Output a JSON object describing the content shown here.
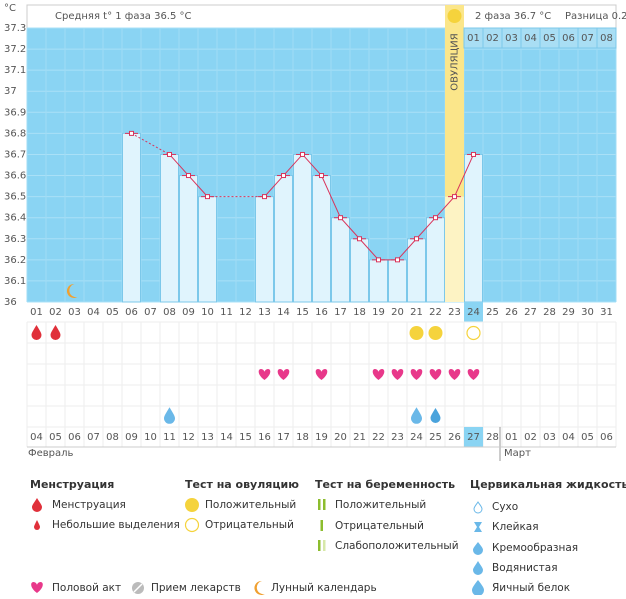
{
  "chart_data": {
    "type": "bar",
    "unit_label": "°C",
    "header": {
      "phase1": "Средняя t° 1 фаза 36.5 °C",
      "phase2": "2 фаза 36.7 °C",
      "difference": "Разница 0.2"
    },
    "ovulation_label": "ОВУЛЯЦИЯ",
    "ovulation_day": "23",
    "phase2_days": [
      "01",
      "02",
      "03",
      "04",
      "05",
      "06",
      "07",
      "08"
    ],
    "categories": [
      "01",
      "02",
      "03",
      "04",
      "05",
      "06",
      "07",
      "08",
      "09",
      "10",
      "11",
      "12",
      "13",
      "14",
      "15",
      "16",
      "17",
      "18",
      "19",
      "20",
      "21",
      "22",
      "23",
      "24",
      "25",
      "26",
      "27",
      "28",
      "29",
      "30",
      "31"
    ],
    "values": [
      null,
      null,
      null,
      null,
      null,
      36.8,
      null,
      36.7,
      36.6,
      36.5,
      null,
      null,
      36.5,
      36.6,
      36.7,
      36.6,
      36.4,
      36.3,
      36.2,
      36.2,
      36.3,
      36.4,
      36.5,
      36.7,
      null,
      null,
      null,
      null,
      null,
      null,
      null
    ],
    "color": "#d9345b",
    "ylim": [
      36,
      37.3
    ],
    "yticks": [
      36,
      36.1,
      36.2,
      36.3,
      36.4,
      36.5,
      36.6,
      36.7,
      36.8,
      36.9,
      37,
      37.1,
      37.2,
      37.3
    ],
    "today": "24",
    "dates": [
      "04",
      "05",
      "06",
      "07",
      "08",
      "09",
      "10",
      "11",
      "12",
      "13",
      "14",
      "15",
      "16",
      "17",
      "18",
      "19",
      "20",
      "21",
      "22",
      "23",
      "24",
      "25",
      "26",
      "27",
      "28",
      "01",
      "02",
      "03",
      "04",
      "05",
      "06"
    ],
    "weekends": [
      1,
      2,
      8,
      9,
      15,
      16,
      22,
      29,
      30
    ],
    "highlight_date": "27",
    "months": [
      "Февраль",
      "Март"
    ],
    "events": {
      "menstruation": [
        "01",
        "02"
      ],
      "ovulation_positive": [
        "21",
        "22"
      ],
      "ovulation_negative": [
        "24"
      ],
      "intercourse": [
        "13",
        "14",
        "16",
        "19",
        "20",
        "21",
        "22",
        "23",
        "24"
      ],
      "fluid_egg_white": [
        "08",
        "21"
      ],
      "fluid_watery": [
        "22"
      ],
      "lunar": [
        "03"
      ]
    }
  },
  "legend": {
    "menstruation": {
      "title": "Менструация",
      "items": [
        "Менструация",
        "Небольшие выделения"
      ]
    },
    "ovulation_test": {
      "title": "Тест на овуляцию",
      "items": [
        "Положительный",
        "Отрицательный"
      ]
    },
    "pregnancy_test": {
      "title": "Тест на беременность",
      "items": [
        "Положительный",
        "Отрицательный",
        "Слабоположительный"
      ]
    },
    "cervical_fluid": {
      "title": "Цервикальная жидкость",
      "items": [
        "Сухо",
        "Клейкая",
        "Кремообразная",
        "Водянистая",
        "Яичный белок"
      ]
    },
    "other": [
      "Половой акт",
      "Прием лекарств",
      "Лунный календарь"
    ]
  }
}
